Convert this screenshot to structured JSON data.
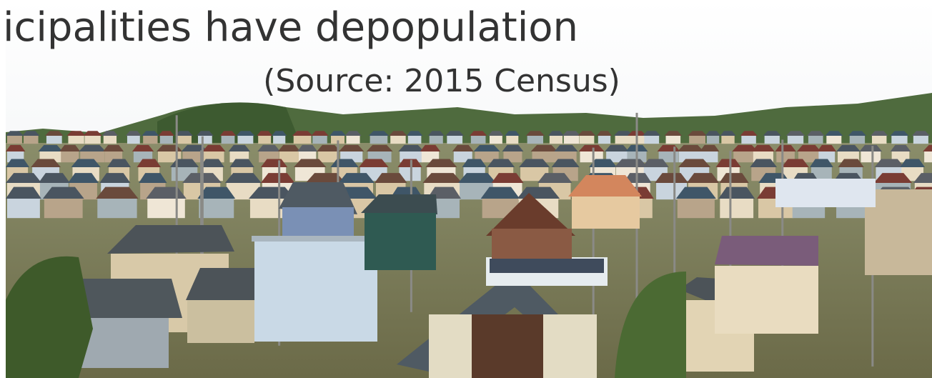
{
  "heading": "icipalities have depopulation",
  "source": "(Source: 2015 Census)"
}
